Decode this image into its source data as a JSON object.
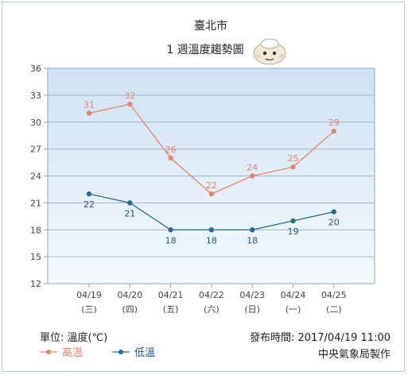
{
  "chart_data": {
    "type": "line",
    "title": "臺北市",
    "subtitle": "1 週溫度趨勢圖",
    "categories": [
      "04/19",
      "04/20",
      "04/21",
      "04/22",
      "04/23",
      "04/24",
      "04/25"
    ],
    "weekdays": [
      "(三)",
      "(四)",
      "(五)",
      "(六)",
      "(日)",
      "(一)",
      "(二)"
    ],
    "yticks": [
      12,
      15,
      18,
      21,
      24,
      27,
      30,
      33,
      36
    ],
    "ylim": [
      12,
      36
    ],
    "grid": true,
    "series": [
      {
        "name": "高溫",
        "color": "#e8826e",
        "values": [
          31,
          32,
          26,
          22,
          24,
          25,
          29
        ]
      },
      {
        "name": "低溫",
        "color": "#2a6a8c",
        "values": [
          22,
          21,
          18,
          18,
          18,
          19,
          20
        ]
      }
    ],
    "legend_position": "bottom-left"
  },
  "footer": {
    "unit": "單位: 溫度(℃)",
    "issued": "發布時間: 2017/04/19 11:00",
    "producer": "中央氣象局製作"
  },
  "mascot_icon": "cloud-mascot-icon"
}
